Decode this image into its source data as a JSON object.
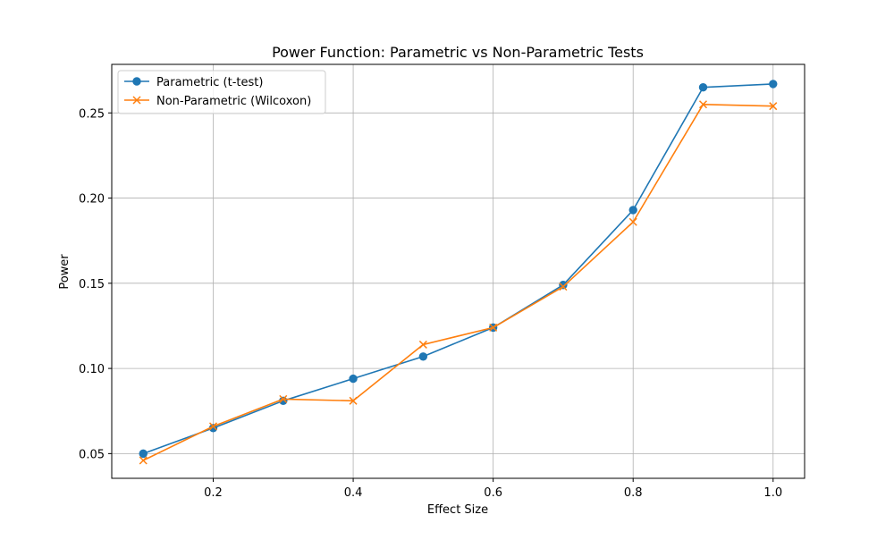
{
  "chart_data": {
    "type": "line",
    "title": "Power Function: Parametric vs Non-Parametric Tests",
    "xlabel": "Effect Size",
    "ylabel": "Power",
    "x": [
      0.1,
      0.2,
      0.3,
      0.4,
      0.5,
      0.6,
      0.7,
      0.8,
      0.9,
      1.0
    ],
    "xlim": [
      0.055,
      1.045
    ],
    "ylim": [
      0.0355,
      0.2785
    ],
    "xticks": [
      "0.2",
      "0.4",
      "0.6",
      "0.8",
      "1.0"
    ],
    "yticks": [
      "0.05",
      "0.10",
      "0.15",
      "0.20",
      "0.25"
    ],
    "grid": true,
    "legend_position": "upper-left",
    "series": [
      {
        "name": "Parametric (t-test)",
        "color": "#1f77b4",
        "marker": "circle",
        "values": [
          0.05,
          0.065,
          0.081,
          0.094,
          0.107,
          0.124,
          0.149,
          0.193,
          0.265,
          0.267
        ]
      },
      {
        "name": "Non-Parametric (Wilcoxon)",
        "color": "#ff7f0e",
        "marker": "x",
        "values": [
          0.046,
          0.066,
          0.082,
          0.081,
          0.114,
          0.124,
          0.148,
          0.186,
          0.255,
          0.254
        ]
      }
    ]
  }
}
